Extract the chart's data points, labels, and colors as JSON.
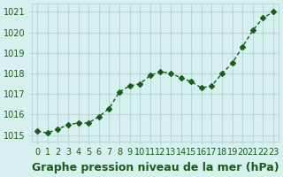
{
  "x": [
    0,
    1,
    2,
    3,
    4,
    5,
    6,
    7,
    8,
    9,
    10,
    11,
    12,
    13,
    14,
    15,
    16,
    17,
    18,
    19,
    20,
    21,
    22,
    23
  ],
  "y": [
    1015.2,
    1015.1,
    1015.3,
    1015.5,
    1015.6,
    1015.6,
    1015.9,
    1016.3,
    1017.1,
    1017.4,
    1017.5,
    1017.9,
    1018.1,
    1018.0,
    1017.8,
    1017.6,
    1017.3,
    1017.4,
    1018.0,
    1018.5,
    1019.3,
    1020.1,
    1020.7,
    1021.0
  ],
  "line_color": "#1a5c1a",
  "marker": "D",
  "marker_size": 3,
  "bg_color": "#d6f0f0",
  "grid_color": "#b8d8d8",
  "xlabel": "Graphe pression niveau de la mer (hPa)",
  "xlabel_fontsize": 9,
  "ylabel_ticks": [
    1015,
    1016,
    1017,
    1018,
    1019,
    1020,
    1021
  ],
  "ylim": [
    1014.7,
    1021.4
  ],
  "xlim": [
    -0.5,
    23.5
  ],
  "tick_fontsize": 7,
  "tick_color": "#1a5c1a"
}
